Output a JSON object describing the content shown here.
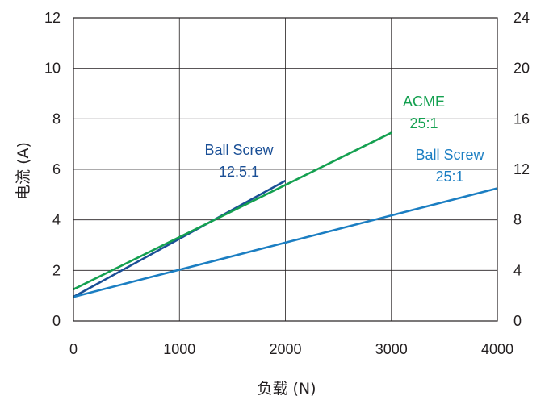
{
  "chart_data": {
    "type": "line",
    "xlabel": "负载 (N)",
    "ylabel": "电流 (A)",
    "xlim": [
      0,
      4000
    ],
    "ylim": [
      0,
      12
    ],
    "y2lim": [
      0,
      24
    ],
    "x_ticks": [
      "0",
      "1000",
      "2000",
      "3000",
      "4000"
    ],
    "y_ticks": [
      "0",
      "2",
      "4",
      "6",
      "8",
      "10",
      "12"
    ],
    "y2_ticks": [
      "0",
      "4",
      "8",
      "12",
      "16",
      "20",
      "24"
    ],
    "grid": true,
    "series": [
      {
        "name": "Ball Screw 12.5:1",
        "label_lines": [
          "Ball Screw",
          "12.5:1"
        ],
        "color": "#1a4f96",
        "x": [
          0,
          2000
        ],
        "y": [
          0.95,
          5.55
        ]
      },
      {
        "name": "ACME 25:1",
        "label_lines": [
          "ACME",
          "25:1"
        ],
        "color": "#14a050",
        "x": [
          0,
          3000
        ],
        "y": [
          1.25,
          7.45
        ]
      },
      {
        "name": "Ball Screw 25:1",
        "label_lines": [
          "Ball Screw",
          "25:1"
        ],
        "color": "#1b7ec2",
        "x": [
          0,
          4000
        ],
        "y": [
          0.95,
          5.25
        ]
      }
    ]
  }
}
